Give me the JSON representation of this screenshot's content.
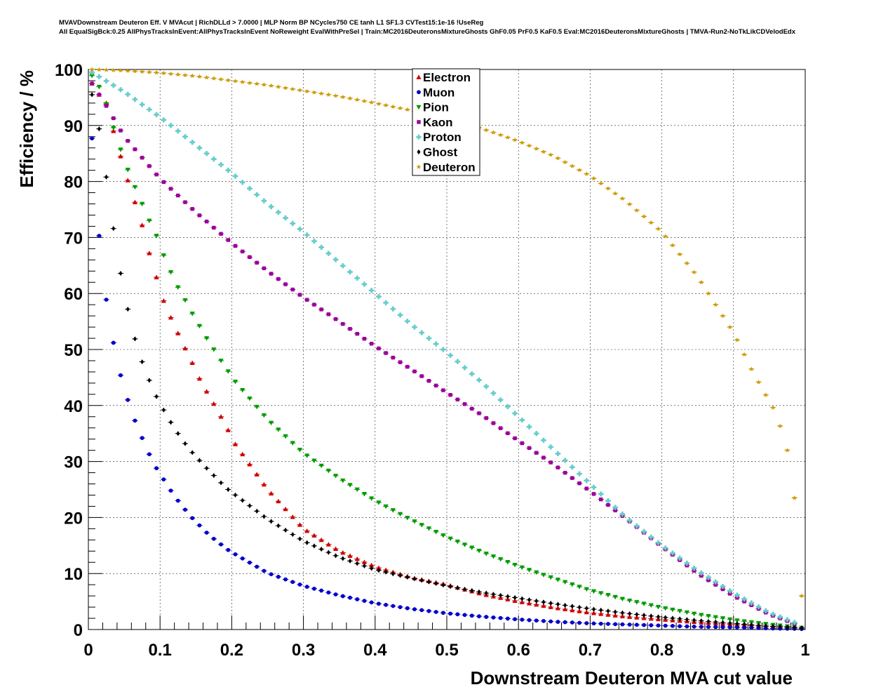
{
  "title": {
    "line1": "MVAVDownstream Deuteron Eff. V MVAcut | RichDLLd > 7.0000 | MLP Norm BP NCycles750 CE tanh L1 SF1.3 CVTest15:1e-16 !UseReg",
    "line2": "All EqualSigBck:0.25 AllPhysTracksInEvent:AllPhysTracksInEvent NoReweight EvalWithPreSel | Train:MC2016DeuteronsMixtureGhosts GhF0.05 PrF0.5 KaF0.5 Eval:MC2016DeuteronsMixtureGhosts | TMVA-Run2-NoTkLikCDVelodEdx"
  },
  "chart_data": {
    "type": "scatter",
    "xlabel": "Downstream Deuteron MVA cut value",
    "ylabel": "Efficiency / %",
    "xlim": [
      0,
      1
    ],
    "ylim": [
      0,
      100
    ],
    "x_ticks": [
      "0",
      "0.1",
      "0.2",
      "0.3",
      "0.4",
      "0.5",
      "0.6",
      "0.7",
      "0.8",
      "0.9",
      "1"
    ],
    "y_ticks": [
      "0",
      "10",
      "20",
      "30",
      "40",
      "50",
      "60",
      "70",
      "80",
      "90",
      "100"
    ],
    "grid": true,
    "legend_position": "top-center",
    "x_step": 0.01,
    "series": [
      {
        "name": "Electron",
        "color": "#cc0000",
        "marker": "triangle-up",
        "x": [
          0.005,
          0.015,
          0.025,
          0.035,
          0.045,
          0.055,
          0.065,
          0.075,
          0.085,
          0.095,
          0.105,
          0.115,
          0.125,
          0.135,
          0.145,
          0.155,
          0.165,
          0.175,
          0.185,
          0.195,
          0.2,
          0.25,
          0.3,
          0.35,
          0.4,
          0.45,
          0.5,
          0.55,
          0.6,
          0.65,
          0.7,
          0.75,
          0.8,
          0.85,
          0.9,
          0.95,
          0.995
        ],
        "y": [
          97.5,
          95.5,
          94,
          89,
          84.5,
          80.2,
          76.3,
          72.2,
          67.2,
          62.9,
          58.7,
          55.7,
          52.9,
          50.2,
          47.6,
          44.8,
          42.5,
          40.3,
          38,
          35.6,
          34,
          25,
          18,
          14,
          11.2,
          9.3,
          8,
          6.3,
          5,
          3.9,
          3,
          2.3,
          1.8,
          1.3,
          0.9,
          0.5,
          0.3
        ]
      },
      {
        "name": "Muon",
        "color": "#0000cc",
        "marker": "circle",
        "x": [
          0.005,
          0.015,
          0.025,
          0.035,
          0.045,
          0.055,
          0.065,
          0.075,
          0.085,
          0.095,
          0.105,
          0.115,
          0.125,
          0.135,
          0.145,
          0.155,
          0.165,
          0.175,
          0.185,
          0.195,
          0.2,
          0.25,
          0.3,
          0.35,
          0.4,
          0.45,
          0.5,
          0.55,
          0.6,
          0.65,
          0.7,
          0.75,
          0.8,
          0.85,
          0.9,
          0.95,
          0.995
        ],
        "y": [
          87.7,
          70.3,
          58.9,
          51.2,
          45.4,
          41,
          37.3,
          34.2,
          31.3,
          28.8,
          26.8,
          24.8,
          23,
          21.4,
          19.9,
          18.6,
          17.3,
          16.2,
          15.2,
          14.2,
          13.8,
          10.1,
          7.8,
          6.1,
          4.7,
          3.7,
          2.9,
          2.3,
          1.8,
          1.4,
          1.1,
          0.9,
          0.7,
          0.5,
          0.4,
          0.2,
          0.1
        ]
      },
      {
        "name": "Pion",
        "color": "#009900",
        "marker": "triangle-down",
        "x": [
          0.005,
          0.015,
          0.025,
          0.035,
          0.045,
          0.055,
          0.065,
          0.075,
          0.085,
          0.095,
          0.105,
          0.115,
          0.125,
          0.135,
          0.145,
          0.155,
          0.165,
          0.175,
          0.185,
          0.195,
          0.2,
          0.25,
          0.3,
          0.35,
          0.4,
          0.45,
          0.5,
          0.55,
          0.6,
          0.65,
          0.7,
          0.75,
          0.8,
          0.85,
          0.9,
          0.95,
          0.995
        ],
        "y": [
          98.9,
          96.9,
          93.8,
          89.6,
          85.7,
          82.1,
          79,
          76,
          73,
          70.3,
          66.8,
          63.8,
          61.1,
          58.8,
          56.4,
          54.2,
          52,
          50,
          48,
          46.1,
          45,
          37.5,
          31.5,
          27,
          23,
          19.6,
          16.5,
          13.8,
          11.3,
          9.1,
          7,
          5.3,
          3.9,
          2.7,
          1.7,
          0.9,
          0.3
        ]
      },
      {
        "name": "Kaon",
        "color": "#990099",
        "marker": "square",
        "x": [
          0.005,
          0.025,
          0.05,
          0.1,
          0.15,
          0.2,
          0.25,
          0.3,
          0.35,
          0.4,
          0.45,
          0.5,
          0.55,
          0.6,
          0.65,
          0.7,
          0.75,
          0.8,
          0.85,
          0.9,
          0.95,
          0.99
        ],
        "y": [
          97.5,
          93.5,
          88,
          80.5,
          74.5,
          69,
          64,
          59.3,
          55,
          50.6,
          46.5,
          42.3,
          38.2,
          33.7,
          29.4,
          24.7,
          19.8,
          14.8,
          10,
          6,
          2.7,
          0.8
        ]
      },
      {
        "name": "Proton",
        "color": "#66cccc",
        "marker": "cross",
        "x": [
          0.005,
          0.05,
          0.1,
          0.15,
          0.2,
          0.25,
          0.3,
          0.35,
          0.4,
          0.45,
          0.5,
          0.55,
          0.6,
          0.65,
          0.7,
          0.75,
          0.8,
          0.85,
          0.9,
          0.95,
          0.99
        ],
        "y": [
          99.5,
          96,
          91.5,
          86.5,
          81.5,
          76,
          71,
          65.5,
          60,
          54.5,
          49.5,
          44,
          38,
          32,
          26,
          20,
          15,
          10.5,
          6.5,
          3,
          1
        ]
      },
      {
        "name": "Ghost",
        "color": "#000000",
        "marker": "diamond",
        "x": [
          0.005,
          0.015,
          0.025,
          0.035,
          0.045,
          0.055,
          0.065,
          0.075,
          0.085,
          0.095,
          0.105,
          0.115,
          0.125,
          0.135,
          0.145,
          0.155,
          0.165,
          0.175,
          0.185,
          0.195,
          0.2,
          0.25,
          0.3,
          0.35,
          0.4,
          0.45,
          0.5,
          0.55,
          0.6,
          0.65,
          0.7,
          0.75,
          0.8,
          0.85,
          0.9,
          0.95,
          0.995
        ],
        "y": [
          95.5,
          89.4,
          80.8,
          71.6,
          63.6,
          57.2,
          51.9,
          47.8,
          44.5,
          41.6,
          39.2,
          37,
          35,
          33.2,
          31.6,
          30.2,
          28.8,
          27.5,
          26.2,
          25,
          24.5,
          19.7,
          15.8,
          12.9,
          10.7,
          9.2,
          7.8,
          6.6,
          5.6,
          4.6,
          3.7,
          2.9,
          2.2,
          1.6,
          1.1,
          0.6,
          0.3
        ]
      },
      {
        "name": "Deuteron",
        "color": "#cc9900",
        "marker": "star",
        "x": [
          0.005,
          0.05,
          0.1,
          0.15,
          0.2,
          0.25,
          0.3,
          0.35,
          0.4,
          0.45,
          0.5,
          0.55,
          0.6,
          0.65,
          0.7,
          0.75,
          0.8,
          0.85,
          0.9,
          0.925,
          0.94,
          0.96,
          0.975,
          0.985,
          0.995
        ],
        "y": [
          100,
          99.8,
          99.4,
          98.8,
          98,
          97.2,
          96.2,
          95.2,
          94,
          92.7,
          91.2,
          89.4,
          87.2,
          84.5,
          81,
          76.5,
          71,
          63,
          53,
          46.5,
          43,
          38.5,
          32,
          23.5,
          6
        ]
      }
    ]
  }
}
